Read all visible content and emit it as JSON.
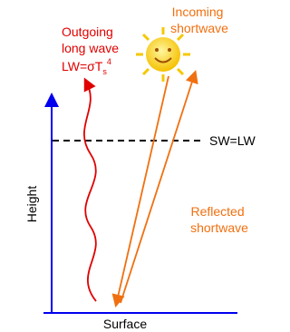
{
  "labels": {
    "incoming": [
      "Incoming",
      "shortwave"
    ],
    "outgoing": [
      "Outgoing",
      "long wave"
    ],
    "formula": {
      "base": "LW=σT",
      "sub": "s",
      "sup": "4"
    },
    "balance": "SW=LW",
    "reflected": [
      "Reflected",
      "shortwave"
    ],
    "y_axis": "Height",
    "x_axis": "Surface"
  }
}
